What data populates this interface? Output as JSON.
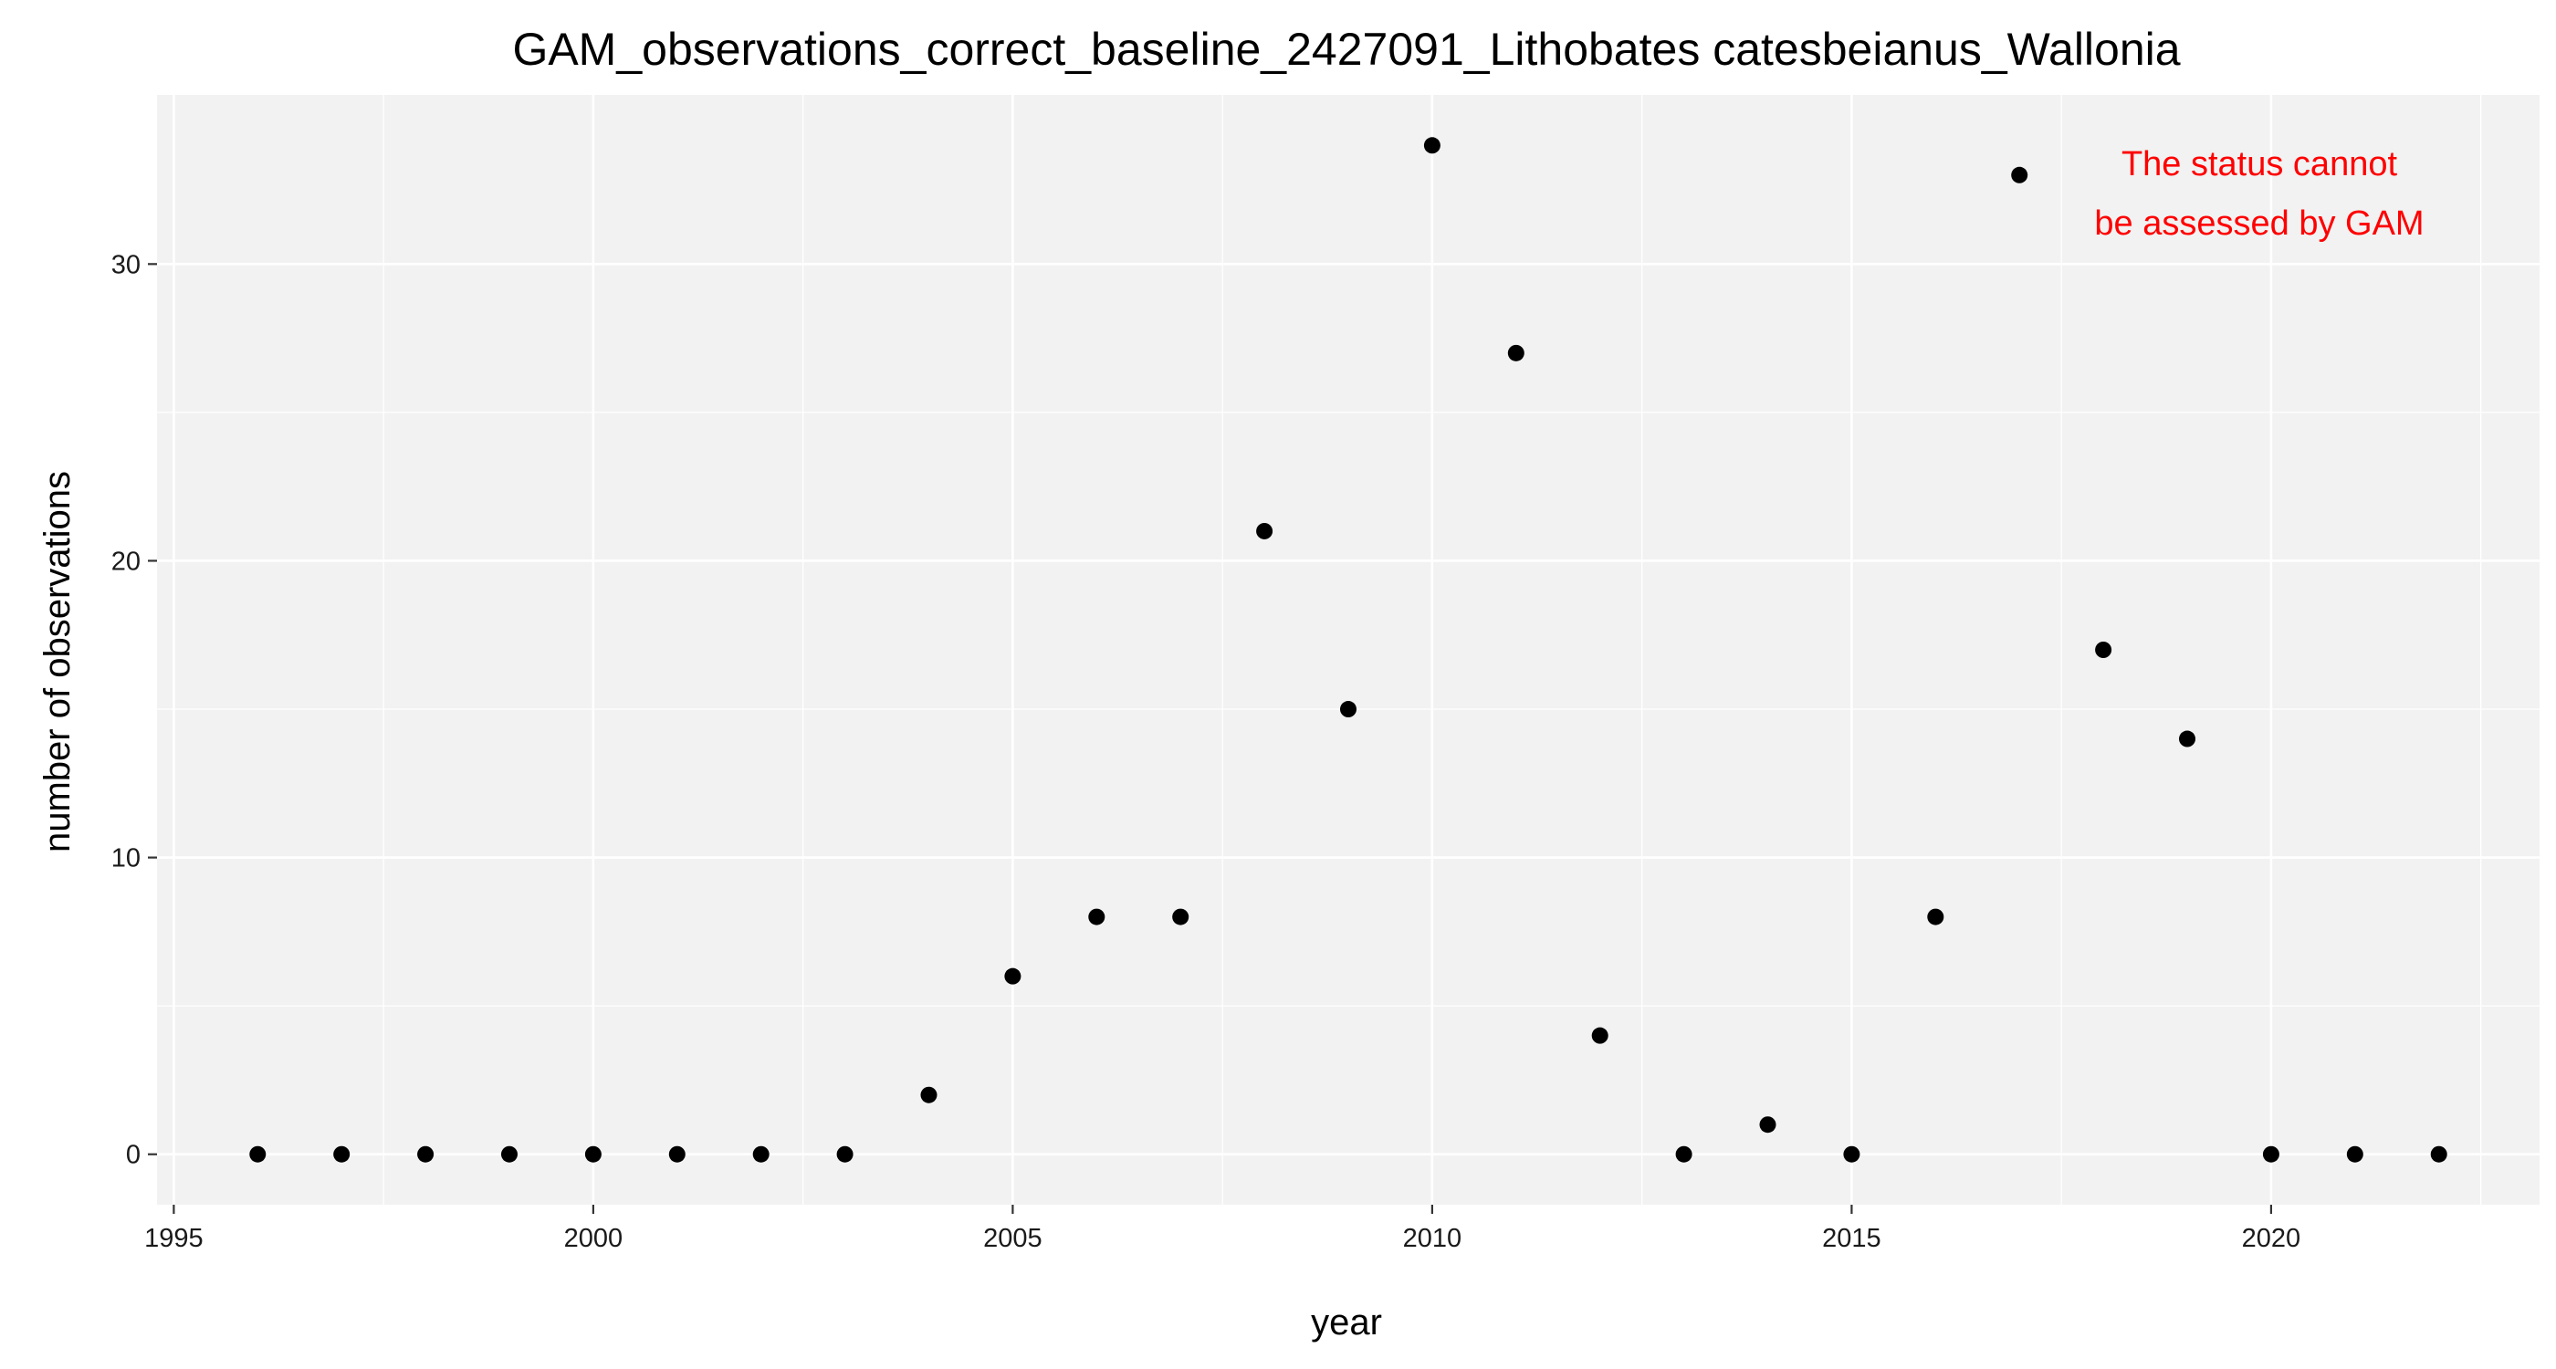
{
  "chart_data": {
    "type": "scatter",
    "title": "GAM_observations_correct_baseline_2427091_Lithobates catesbeianus_Wallonia",
    "xlabel": "year",
    "ylabel": "number of observations",
    "xlim": [
      1994.8,
      2023.2
    ],
    "ylim": [
      -1.7,
      35.7
    ],
    "x_ticks": [
      1995,
      2000,
      2005,
      2010,
      2015,
      2020
    ],
    "y_ticks": [
      0,
      10,
      20,
      30
    ],
    "grid": true,
    "points": [
      {
        "x": 1996,
        "y": 0
      },
      {
        "x": 1997,
        "y": 0
      },
      {
        "x": 1998,
        "y": 0
      },
      {
        "x": 1999,
        "y": 0
      },
      {
        "x": 2000,
        "y": 0
      },
      {
        "x": 2001,
        "y": 0
      },
      {
        "x": 2002,
        "y": 0
      },
      {
        "x": 2003,
        "y": 0
      },
      {
        "x": 2004,
        "y": 2
      },
      {
        "x": 2005,
        "y": 6
      },
      {
        "x": 2006,
        "y": 8
      },
      {
        "x": 2007,
        "y": 8
      },
      {
        "x": 2008,
        "y": 21
      },
      {
        "x": 2009,
        "y": 15
      },
      {
        "x": 2010,
        "y": 34
      },
      {
        "x": 2011,
        "y": 27
      },
      {
        "x": 2012,
        "y": 4
      },
      {
        "x": 2013,
        "y": 0
      },
      {
        "x": 2014,
        "y": 1
      },
      {
        "x": 2015,
        "y": 0
      },
      {
        "x": 2016,
        "y": 8
      },
      {
        "x": 2017,
        "y": 33
      },
      {
        "x": 2018,
        "y": 17
      },
      {
        "x": 2019,
        "y": 14
      },
      {
        "x": 2020,
        "y": 0
      },
      {
        "x": 2021,
        "y": 0
      },
      {
        "x": 2022,
        "y": 0
      }
    ],
    "annotation": {
      "lines": [
        "The status cannot",
        "be assessed by GAM"
      ],
      "color": "#ff0000",
      "placement": "top-right"
    },
    "colors": {
      "panel_background": "#f2f2f2",
      "grid": "#ffffff",
      "point": "#000000"
    }
  }
}
